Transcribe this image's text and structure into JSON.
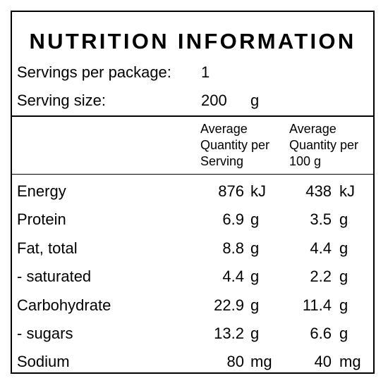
{
  "panel": {
    "title": "NUTRITION INFORMATION",
    "servings_per_package_label": "Servings per package:",
    "servings_per_package_value": "1",
    "serving_size_label": "Serving size:",
    "serving_size_value": "200",
    "serving_size_unit": "g"
  },
  "columns": {
    "per_serving_line1": "Average",
    "per_serving_line2": "Quantity per",
    "per_serving_line3": "Serving",
    "per_100g_line1": "Average",
    "per_100g_line2": "Quantity per",
    "per_100g_line3": "100 g"
  },
  "rows": [
    {
      "label": "Energy",
      "serving": "876",
      "serving_unit": "kJ",
      "per100": "438",
      "per100_unit": "kJ"
    },
    {
      "label": "Protein",
      "serving": "6.9",
      "serving_unit": "g",
      "per100": "3.5",
      "per100_unit": "g"
    },
    {
      "label": "Fat, total",
      "serving": "8.8",
      "serving_unit": "g",
      "per100": "4.4",
      "per100_unit": "g"
    },
    {
      "label": "- saturated",
      "serving": "4.4",
      "serving_unit": "g",
      "per100": "2.2",
      "per100_unit": "g"
    },
    {
      "label": "Carbohydrate",
      "serving": "22.9",
      "serving_unit": "g",
      "per100": "11.4",
      "per100_unit": "g"
    },
    {
      "label": "- sugars",
      "serving": "13.2",
      "serving_unit": "g",
      "per100": "6.6",
      "per100_unit": "g"
    },
    {
      "label": "Sodium",
      "serving": "80",
      "serving_unit": "mg",
      "per100": "40",
      "per100_unit": "mg"
    }
  ]
}
